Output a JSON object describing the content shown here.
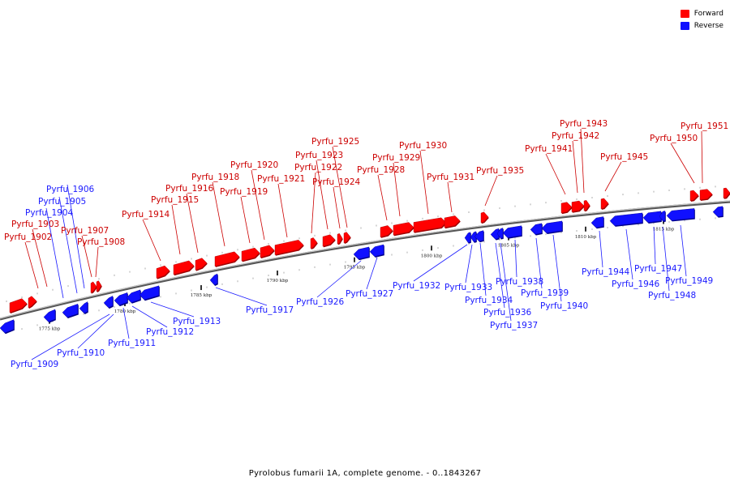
{
  "colors": {
    "forward": "#ff0000",
    "reverse": "#1010ff",
    "axis": "#888888",
    "label_forward": "#cc0000",
    "label_reverse": "#1a1aff"
  },
  "legend": {
    "forward_label": "Forward",
    "reverse_label": "Reverse"
  },
  "footer": {
    "caption": "Pyrolobus fumarii 1A, complete genome. - 0..1843267"
  },
  "chart_data": {
    "type": "genome-map",
    "sequence_range": [
      0,
      1843267
    ],
    "ticks": [
      "1775 kbp",
      "1780 kbp",
      "1785 kbp",
      "1790 kbp",
      "1795 kbp",
      "1800 kbp",
      "1805 kbp",
      "1810 kbp",
      "1815 kbp"
    ],
    "genes": [
      {
        "name": "Pyrfu_1902",
        "strand": "forward"
      },
      {
        "name": "Pyrfu_1903",
        "strand": "forward"
      },
      {
        "name": "Pyrfu_1904",
        "strand": "reverse"
      },
      {
        "name": "Pyrfu_1905",
        "strand": "reverse"
      },
      {
        "name": "Pyrfu_1906",
        "strand": "reverse"
      },
      {
        "name": "Pyrfu_1907",
        "strand": "forward"
      },
      {
        "name": "Pyrfu_1908",
        "strand": "forward"
      },
      {
        "name": "Pyrfu_1909",
        "strand": "reverse"
      },
      {
        "name": "Pyrfu_1910",
        "strand": "reverse"
      },
      {
        "name": "Pyrfu_1911",
        "strand": "reverse"
      },
      {
        "name": "Pyrfu_1912",
        "strand": "reverse"
      },
      {
        "name": "Pyrfu_1913",
        "strand": "reverse"
      },
      {
        "name": "Pyrfu_1914",
        "strand": "forward"
      },
      {
        "name": "Pyrfu_1915",
        "strand": "forward"
      },
      {
        "name": "Pyrfu_1916",
        "strand": "forward"
      },
      {
        "name": "Pyrfu_1917",
        "strand": "reverse"
      },
      {
        "name": "Pyrfu_1918",
        "strand": "forward"
      },
      {
        "name": "Pyrfu_1919",
        "strand": "forward"
      },
      {
        "name": "Pyrfu_1920",
        "strand": "forward"
      },
      {
        "name": "Pyrfu_1921",
        "strand": "forward"
      },
      {
        "name": "Pyrfu_1922",
        "strand": "forward"
      },
      {
        "name": "Pyrfu_1923",
        "strand": "forward"
      },
      {
        "name": "Pyrfu_1924",
        "strand": "forward"
      },
      {
        "name": "Pyrfu_1925",
        "strand": "forward"
      },
      {
        "name": "Pyrfu_1926",
        "strand": "reverse"
      },
      {
        "name": "Pyrfu_1927",
        "strand": "reverse"
      },
      {
        "name": "Pyrfu_1928",
        "strand": "forward"
      },
      {
        "name": "Pyrfu_1929",
        "strand": "forward"
      },
      {
        "name": "Pyrfu_1930",
        "strand": "forward"
      },
      {
        "name": "Pyrfu_1931",
        "strand": "forward"
      },
      {
        "name": "Pyrfu_1932",
        "strand": "reverse"
      },
      {
        "name": "Pyrfu_1933",
        "strand": "reverse"
      },
      {
        "name": "Pyrfu_1934",
        "strand": "reverse"
      },
      {
        "name": "Pyrfu_1935",
        "strand": "forward"
      },
      {
        "name": "Pyrfu_1936",
        "strand": "reverse"
      },
      {
        "name": "Pyrfu_1937",
        "strand": "reverse"
      },
      {
        "name": "Pyrfu_1938",
        "strand": "reverse"
      },
      {
        "name": "Pyrfu_1939",
        "strand": "reverse"
      },
      {
        "name": "Pyrfu_1940",
        "strand": "reverse"
      },
      {
        "name": "Pyrfu_1941",
        "strand": "forward"
      },
      {
        "name": "Pyrfu_1942",
        "strand": "forward"
      },
      {
        "name": "Pyrfu_1943",
        "strand": "forward"
      },
      {
        "name": "Pyrfu_1944",
        "strand": "reverse"
      },
      {
        "name": "Pyrfu_1945",
        "strand": "forward"
      },
      {
        "name": "Pyrfu_1946",
        "strand": "reverse"
      },
      {
        "name": "Pyrfu_1947",
        "strand": "reverse"
      },
      {
        "name": "Pyrfu_1948",
        "strand": "reverse"
      },
      {
        "name": "Pyrfu_1949",
        "strand": "reverse"
      },
      {
        "name": "Pyrfu_1950",
        "strand": "forward"
      },
      {
        "name": "Pyrfu_1951",
        "strand": "forward"
      }
    ]
  }
}
